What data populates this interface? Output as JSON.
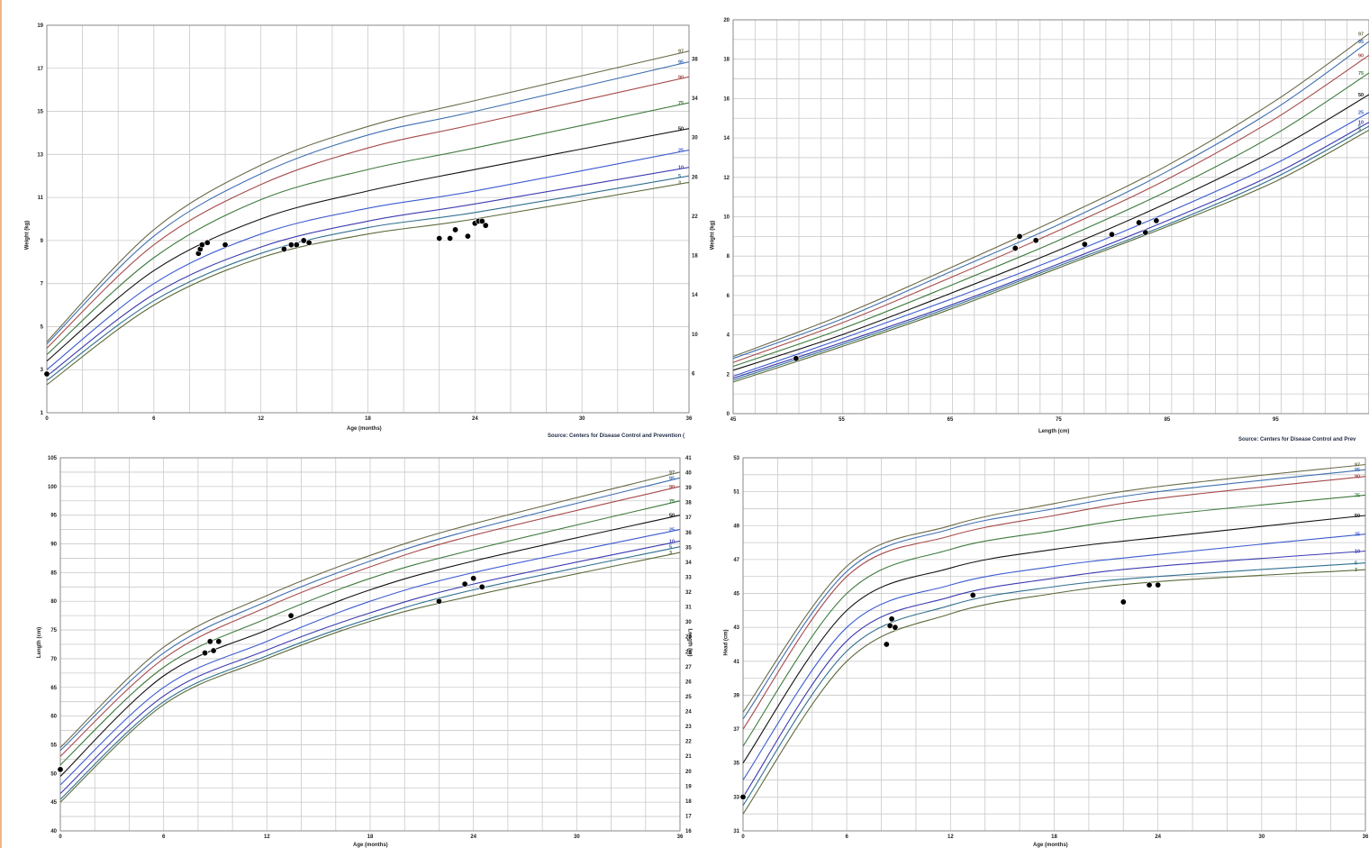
{
  "colors": {
    "background": "#ffffff",
    "grid": "#c9c9c9",
    "frame": "#8a8a8a",
    "left_edge_accent": "#f2b48a",
    "point": "#000000",
    "percentile_colors": {
      "3": "#5b6b3a",
      "5": "#2f6f8f",
      "10": "#3b3bb0",
      "25": "#3b5bd0",
      "50": "#111111",
      "75": "#3d7a3d",
      "90": "#a64a4a",
      "95": "#3e6fb0",
      "97": "#6b6b4a"
    }
  },
  "charts": [
    {
      "xlabel": "Age (months)",
      "ylabel": "Weight (kg)",
      "source": "Source: Centers for Disease Control and Prevention (",
      "x_ticks": [
        "0",
        "6",
        "12",
        "18",
        "24",
        "30",
        "36"
      ],
      "y_ticks": [
        "1",
        "3",
        "5",
        "7",
        "9",
        "11",
        "13",
        "15",
        "17",
        "19"
      ],
      "right_ticks": [
        "6",
        "10",
        "14",
        "18",
        "22",
        "26",
        "30",
        "34",
        "38"
      ],
      "percentile_labels": [
        "97",
        "95",
        "90",
        "75",
        "50",
        "25",
        "10",
        "5",
        "3"
      ]
    },
    {
      "xlabel": "Length (cm)",
      "ylabel": "Weight (kg)",
      "source": "Source: Centers for Disease Control and Prev",
      "x_ticks": [
        "45",
        "55",
        "65",
        "75",
        "85",
        "95"
      ],
      "y_ticks": [
        "0",
        "2",
        "4",
        "6",
        "8",
        "10",
        "12",
        "14",
        "16",
        "18",
        "20"
      ],
      "right_ticks": [],
      "percentile_labels": [
        "97",
        "95",
        "90",
        "75",
        "50",
        "25",
        "10",
        "5",
        "3"
      ]
    },
    {
      "xlabel": "Age (months)",
      "ylabel": "Length (cm)",
      "right_axis_label": "Length (in)",
      "source": "",
      "x_ticks": [
        "0",
        "6",
        "12",
        "18",
        "24",
        "30",
        "36"
      ],
      "y_ticks": [
        "40",
        "45",
        "50",
        "55",
        "60",
        "65",
        "70",
        "75",
        "80",
        "85",
        "90",
        "95",
        "100",
        "105"
      ],
      "right_ticks": [
        "16",
        "17",
        "18",
        "19",
        "20",
        "21",
        "22",
        "23",
        "24",
        "25",
        "26",
        "27",
        "28",
        "29",
        "30",
        "31",
        "32",
        "33",
        "34",
        "35",
        "36",
        "37",
        "38",
        "39",
        "40",
        "41"
      ],
      "percentile_labels": [
        "97",
        "95",
        "90",
        "75",
        "50",
        "25",
        "10",
        "5",
        "3"
      ]
    },
    {
      "xlabel": "Age (months)",
      "ylabel": "Head (cm)",
      "source": "",
      "x_ticks": [
        "0",
        "6",
        "12",
        "18",
        "24",
        "30",
        "36"
      ],
      "y_ticks": [
        "31",
        "33",
        "35",
        "37",
        "39",
        "41",
        "43",
        "45",
        "47",
        "49",
        "51",
        "53"
      ],
      "right_ticks": [],
      "percentile_labels": [
        "97",
        "95",
        "90",
        "75",
        "50",
        "25",
        "10",
        "5",
        "3"
      ]
    }
  ],
  "chart_data": [
    {
      "type": "line",
      "xlabel": "Age (months)",
      "ylabel": "Weight (kg)",
      "xlim": [
        0,
        36
      ],
      "ylim": [
        1,
        19
      ],
      "series": [
        {
          "name": "97",
          "x": [
            0,
            6,
            12,
            18,
            24,
            36
          ],
          "y": [
            4.3,
            9.5,
            12.5,
            14.3,
            15.5,
            17.8
          ]
        },
        {
          "name": "95",
          "x": [
            0,
            6,
            12,
            18,
            24,
            36
          ],
          "y": [
            4.2,
            9.2,
            12.1,
            13.9,
            15.0,
            17.3
          ]
        },
        {
          "name": "90",
          "x": [
            0,
            6,
            12,
            18,
            24,
            36
          ],
          "y": [
            4.0,
            8.8,
            11.6,
            13.3,
            14.4,
            16.6
          ]
        },
        {
          "name": "75",
          "x": [
            0,
            6,
            12,
            18,
            24,
            36
          ],
          "y": [
            3.7,
            8.2,
            10.9,
            12.3,
            13.3,
            15.4
          ]
        },
        {
          "name": "50",
          "x": [
            0,
            6,
            12,
            18,
            24,
            36
          ],
          "y": [
            3.4,
            7.6,
            10.0,
            11.3,
            12.3,
            14.2
          ]
        },
        {
          "name": "25",
          "x": [
            0,
            6,
            12,
            18,
            24,
            36
          ],
          "y": [
            3.0,
            7.0,
            9.3,
            10.5,
            11.3,
            13.2
          ]
        },
        {
          "name": "10",
          "x": [
            0,
            6,
            12,
            18,
            24,
            36
          ],
          "y": [
            2.7,
            6.5,
            8.7,
            9.9,
            10.7,
            12.4
          ]
        },
        {
          "name": "5",
          "x": [
            0,
            6,
            12,
            18,
            24,
            36
          ],
          "y": [
            2.5,
            6.2,
            8.4,
            9.6,
            10.3,
            12.0
          ]
        },
        {
          "name": "3",
          "x": [
            0,
            6,
            12,
            18,
            24,
            36
          ],
          "y": [
            2.3,
            6.0,
            8.2,
            9.3,
            10.0,
            11.7
          ]
        }
      ],
      "points": {
        "x": [
          0,
          8.5,
          8.6,
          8.7,
          9.0,
          10.0,
          13.3,
          13.7,
          14.0,
          14.4,
          14.7,
          22.0,
          22.6,
          22.9,
          23.6,
          24.0,
          24.2,
          24.4,
          24.6
        ],
        "y": [
          2.8,
          8.4,
          8.6,
          8.8,
          8.9,
          8.8,
          8.6,
          8.8,
          8.8,
          9.0,
          8.9,
          9.1,
          9.1,
          9.5,
          9.2,
          9.8,
          9.9,
          9.9,
          9.7
        ]
      }
    },
    {
      "type": "line",
      "xlabel": "Length (cm)",
      "ylabel": "Weight (kg)",
      "xlim": [
        45,
        103.6
      ],
      "ylim": [
        0,
        20
      ],
      "series": [
        {
          "name": "97",
          "x": [
            45,
            55,
            65,
            75,
            85,
            95,
            103.6
          ],
          "y": [
            2.9,
            5.0,
            7.4,
            9.9,
            12.6,
            15.9,
            19.3
          ]
        },
        {
          "name": "95",
          "x": [
            45,
            55,
            65,
            75,
            85,
            95,
            103.6
          ],
          "y": [
            2.8,
            4.8,
            7.2,
            9.6,
            12.3,
            15.5,
            18.9
          ]
        },
        {
          "name": "90",
          "x": [
            45,
            55,
            65,
            75,
            85,
            95,
            103.6
          ],
          "y": [
            2.6,
            4.6,
            6.9,
            9.3,
            11.9,
            15.0,
            18.2
          ]
        },
        {
          "name": "75",
          "x": [
            45,
            55,
            65,
            75,
            85,
            95,
            103.6
          ],
          "y": [
            2.4,
            4.3,
            6.5,
            8.8,
            11.3,
            14.2,
            17.3
          ]
        },
        {
          "name": "50",
          "x": [
            45,
            55,
            65,
            75,
            85,
            95,
            103.6
          ],
          "y": [
            2.2,
            4.0,
            6.1,
            8.3,
            10.7,
            13.4,
            16.2
          ]
        },
        {
          "name": "25",
          "x": [
            45,
            55,
            65,
            75,
            85,
            95,
            103.6
          ],
          "y": [
            1.9,
            3.8,
            5.8,
            7.9,
            10.2,
            12.7,
            15.3
          ]
        },
        {
          "name": "10",
          "x": [
            45,
            55,
            65,
            75,
            85,
            95,
            103.6
          ],
          "y": [
            1.8,
            3.6,
            5.5,
            7.6,
            9.8,
            12.2,
            14.8
          ]
        },
        {
          "name": "5",
          "x": [
            45,
            55,
            65,
            75,
            85,
            95,
            103.6
          ],
          "y": [
            1.7,
            3.5,
            5.4,
            7.5,
            9.6,
            12.0,
            14.6
          ]
        },
        {
          "name": "3",
          "x": [
            45,
            55,
            65,
            75,
            85,
            95,
            103.6
          ],
          "y": [
            1.6,
            3.4,
            5.3,
            7.4,
            9.5,
            11.8,
            14.4
          ]
        }
      ],
      "points": {
        "x": [
          50.8,
          71,
          71.4,
          72.9,
          77.4,
          79.9,
          82.4,
          83,
          84
        ],
        "y": [
          2.8,
          8.4,
          9.0,
          8.8,
          8.6,
          9.1,
          9.7,
          9.2,
          9.8
        ]
      }
    },
    {
      "type": "line",
      "xlabel": "Age (months)",
      "ylabel": "Length (cm)",
      "xlim": [
        0,
        36
      ],
      "ylim": [
        40,
        105
      ],
      "series": [
        {
          "name": "97",
          "x": [
            0,
            6,
            12,
            18,
            24,
            36
          ],
          "y": [
            54.5,
            72.0,
            81.0,
            88.0,
            93.5,
            102.5
          ]
        },
        {
          "name": "95",
          "x": [
            0,
            6,
            12,
            18,
            24,
            36
          ],
          "y": [
            54.0,
            71.0,
            80.0,
            87.0,
            92.5,
            101.5
          ]
        },
        {
          "name": "90",
          "x": [
            0,
            6,
            12,
            18,
            24,
            36
          ],
          "y": [
            53.0,
            70.0,
            79.0,
            86.0,
            91.5,
            100.0
          ]
        },
        {
          "name": "75",
          "x": [
            0,
            6,
            12,
            18,
            24,
            36
          ],
          "y": [
            51.5,
            68.5,
            77.0,
            84.0,
            89.0,
            97.5
          ]
        },
        {
          "name": "50",
          "x": [
            0,
            6,
            12,
            18,
            24,
            36
          ],
          "y": [
            49.5,
            67.0,
            75.0,
            82.0,
            87.0,
            95.0
          ]
        },
        {
          "name": "25",
          "x": [
            0,
            6,
            12,
            18,
            24,
            36
          ],
          "y": [
            48.0,
            65.0,
            73.0,
            80.0,
            85.0,
            92.5
          ]
        },
        {
          "name": "10",
          "x": [
            0,
            6,
            12,
            18,
            24,
            36
          ],
          "y": [
            46.5,
            63.5,
            71.5,
            78.0,
            83.0,
            90.5
          ]
        },
        {
          "name": "5",
          "x": [
            0,
            6,
            12,
            18,
            24,
            36
          ],
          "y": [
            45.5,
            62.5,
            70.5,
            77.0,
            82.0,
            89.5
          ]
        },
        {
          "name": "3",
          "x": [
            0,
            6,
            12,
            18,
            24,
            36
          ],
          "y": [
            45.0,
            62.0,
            70.0,
            76.5,
            81.0,
            88.5
          ]
        }
      ],
      "points": {
        "x": [
          0,
          8.4,
          8.7,
          8.9,
          9.2,
          13.4,
          22,
          23.5,
          24,
          24.5
        ],
        "y": [
          50.7,
          71,
          73,
          71.4,
          73,
          77.5,
          80,
          83,
          84,
          82.5
        ]
      }
    },
    {
      "type": "line",
      "xlabel": "Age (months)",
      "ylabel": "Head (cm)",
      "xlim": [
        0,
        36
      ],
      "ylim": [
        31,
        53
      ],
      "series": [
        {
          "name": "97",
          "x": [
            0,
            6,
            12,
            18,
            24,
            36
          ],
          "y": [
            38.0,
            46.6,
            49.0,
            50.3,
            51.3,
            52.6
          ]
        },
        {
          "name": "95",
          "x": [
            0,
            6,
            12,
            18,
            24,
            36
          ],
          "y": [
            37.6,
            46.3,
            48.8,
            50.0,
            51.0,
            52.3
          ]
        },
        {
          "name": "90",
          "x": [
            0,
            6,
            12,
            18,
            24,
            36
          ],
          "y": [
            37.0,
            46.0,
            48.4,
            49.6,
            50.6,
            51.9
          ]
        },
        {
          "name": "75",
          "x": [
            0,
            6,
            12,
            18,
            24,
            36
          ],
          "y": [
            36.0,
            45.0,
            47.6,
            48.7,
            49.6,
            50.8
          ]
        },
        {
          "name": "50",
          "x": [
            0,
            6,
            12,
            18,
            24,
            36
          ],
          "y": [
            35.0,
            44.0,
            46.5,
            47.6,
            48.3,
            49.6
          ]
        },
        {
          "name": "25",
          "x": [
            0,
            6,
            12,
            18,
            24,
            36
          ],
          "y": [
            34.0,
            43.0,
            45.5,
            46.6,
            47.3,
            48.5
          ]
        },
        {
          "name": "10",
          "x": [
            0,
            6,
            12,
            18,
            24,
            36
          ],
          "y": [
            33.0,
            42.2,
            44.8,
            45.9,
            46.6,
            47.5
          ]
        },
        {
          "name": "5",
          "x": [
            0,
            6,
            12,
            18,
            24,
            36
          ],
          "y": [
            32.5,
            41.6,
            44.3,
            45.4,
            46.0,
            46.8
          ]
        },
        {
          "name": "3",
          "x": [
            0,
            6,
            12,
            18,
            24,
            36
          ],
          "y": [
            32.0,
            41.0,
            43.8,
            45.0,
            45.7,
            46.4
          ]
        }
      ],
      "points": {
        "x": [
          0,
          8.3,
          8.5,
          8.6,
          8.8,
          13.3,
          22,
          23.5,
          24
        ],
        "y": [
          33,
          42.0,
          43.1,
          43.5,
          43.0,
          44.9,
          44.5,
          45.5,
          45.5
        ]
      }
    }
  ]
}
